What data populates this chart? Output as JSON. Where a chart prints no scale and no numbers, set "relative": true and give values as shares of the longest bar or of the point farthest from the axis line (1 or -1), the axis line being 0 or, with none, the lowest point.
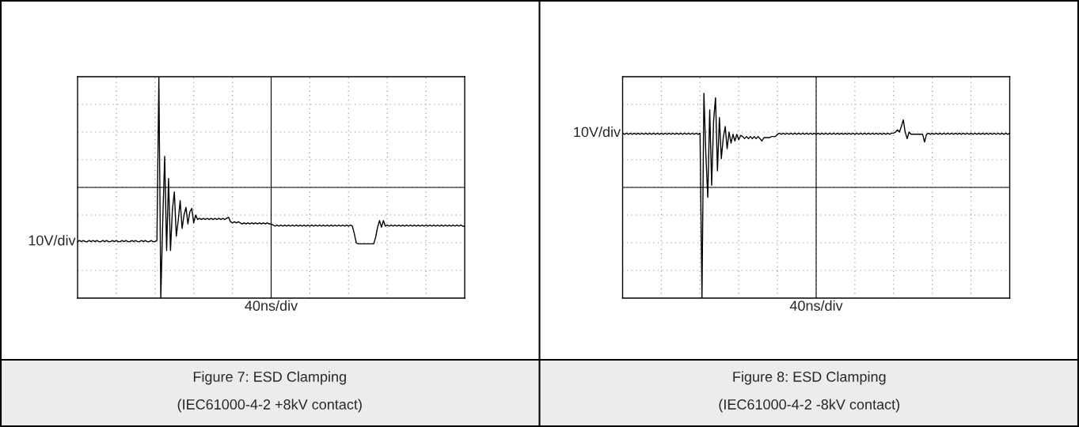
{
  "chart_data": [
    {
      "type": "line",
      "relative": true,
      "title": "Figure 7: ESD Clamping",
      "subtitle": "(IEC61000-4-2 +8kV contact)",
      "xlabel": "40ns/div",
      "ylabel": "10V/div",
      "grid": true,
      "tick_labels": false,
      "categories": [
        null,
        null,
        null,
        null,
        null,
        null,
        null,
        null,
        null,
        null,
        null,
        null,
        null,
        null,
        null,
        null,
        null,
        null,
        null,
        null,
        null,
        null,
        null,
        null,
        null,
        null,
        null,
        null,
        null,
        null,
        null,
        null,
        null,
        null,
        null,
        null,
        null,
        null,
        null,
        null,
        null,
        null,
        null,
        null,
        null,
        null,
        null,
        null,
        null,
        null,
        null,
        null,
        null,
        null,
        null,
        null,
        null,
        null,
        null,
        null,
        null,
        null,
        null,
        null,
        null,
        null,
        null,
        null,
        null,
        null,
        null,
        null,
        null,
        null,
        null,
        null,
        null,
        null,
        null,
        null,
        null,
        null,
        null,
        null,
        null,
        null,
        null,
        null,
        null,
        null,
        null,
        null,
        null,
        null,
        null,
        null,
        null,
        null,
        null,
        null,
        null,
        null,
        null,
        null,
        null,
        null,
        null,
        null,
        null,
        null,
        null,
        null,
        null,
        null,
        null,
        null,
        null,
        null,
        null,
        null,
        null,
        null,
        null,
        null,
        null,
        null,
        null,
        null,
        null,
        null,
        null,
        null,
        null,
        null,
        null,
        null,
        null,
        null,
        null,
        null,
        null,
        null,
        null,
        null,
        null,
        null,
        null,
        null,
        null,
        null,
        null,
        null,
        null,
        null,
        null,
        null,
        null,
        null,
        null,
        null,
        null,
        null,
        null,
        null,
        null,
        null,
        null,
        null,
        null,
        null,
        null,
        null,
        null,
        null,
        null,
        null,
        null,
        null,
        null,
        null,
        null,
        null,
        null,
        null,
        null,
        null,
        null,
        null,
        null,
        null,
        null,
        null,
        null,
        null,
        null,
        null,
        null,
        null,
        null,
        null,
        null
      ],
      "series": [
        {
          "color": "#000000",
          "values": [
            -0.49,
            -0.48,
            -0.49,
            -0.48,
            -0.49,
            -0.49,
            -0.48,
            -0.49,
            -0.48,
            -0.49,
            -0.48,
            -0.49,
            -0.49,
            -0.48,
            -0.49,
            -0.48,
            -0.49,
            -0.49,
            -0.48,
            -0.49,
            -0.48,
            -0.49,
            -0.49,
            -0.48,
            -0.49,
            -0.48,
            -0.49,
            -0.49,
            -0.48,
            -0.49,
            -0.48,
            -0.49,
            -0.49,
            -0.48,
            -0.49,
            -0.48,
            -0.49,
            -0.49,
            -0.48,
            -0.49,
            -0.49,
            -0.48,
            1.0,
            -1.0,
            -0.3,
            0.28,
            -0.57,
            0.08,
            -0.57,
            -0.2,
            -0.04,
            -0.44,
            -0.3,
            -0.12,
            -0.37,
            -0.25,
            -0.18,
            -0.33,
            -0.22,
            -0.19,
            -0.32,
            -0.25,
            -0.29,
            -0.28,
            -0.29,
            -0.28,
            -0.29,
            -0.28,
            -0.29,
            -0.28,
            -0.29,
            -0.28,
            -0.29,
            -0.28,
            -0.29,
            -0.28,
            -0.29,
            -0.28,
            -0.27,
            -0.31,
            -0.32,
            -0.31,
            -0.32,
            -0.31,
            -0.32,
            -0.33,
            -0.32,
            -0.33,
            -0.32,
            -0.33,
            -0.32,
            -0.33,
            -0.32,
            -0.33,
            -0.32,
            -0.33,
            -0.32,
            -0.33,
            -0.32,
            -0.33,
            -0.33,
            -0.34,
            -0.35,
            -0.34,
            -0.35,
            -0.34,
            -0.35,
            -0.34,
            -0.35,
            -0.34,
            -0.35,
            -0.34,
            -0.35,
            -0.34,
            -0.35,
            -0.34,
            -0.35,
            -0.34,
            -0.35,
            -0.34,
            -0.35,
            -0.34,
            -0.35,
            -0.34,
            -0.35,
            -0.34,
            -0.35,
            -0.34,
            -0.35,
            -0.34,
            -0.35,
            -0.34,
            -0.35,
            -0.34,
            -0.35,
            -0.34,
            -0.35,
            -0.34,
            -0.35,
            -0.34,
            -0.35,
            -0.34,
            -0.35,
            -0.42,
            -0.5,
            -0.51,
            -0.51,
            -0.51,
            -0.51,
            -0.51,
            -0.51,
            -0.51,
            -0.51,
            -0.51,
            -0.45,
            -0.36,
            -0.3,
            -0.36,
            -0.3,
            -0.35,
            -0.34,
            -0.35,
            -0.34,
            -0.35,
            -0.34,
            -0.35,
            -0.34,
            -0.35,
            -0.34,
            -0.35,
            -0.34,
            -0.35,
            -0.34,
            -0.35,
            -0.34,
            -0.35,
            -0.34,
            -0.35,
            -0.34,
            -0.35,
            -0.34,
            -0.35,
            -0.34,
            -0.35,
            -0.34,
            -0.35,
            -0.34,
            -0.35,
            -0.34,
            -0.35,
            -0.34,
            -0.35,
            -0.34,
            -0.35,
            -0.34,
            -0.35,
            -0.34,
            -0.35,
            -0.34,
            -0.35,
            -0.35
          ]
        }
      ]
    },
    {
      "type": "line",
      "relative": true,
      "title": "Figure 8: ESD Clamping",
      "subtitle": "(IEC61000-4-2 -8kV contact)",
      "xlabel": "40ns/div",
      "ylabel": "10V/div",
      "grid": true,
      "tick_labels": false,
      "categories": [
        null,
        null,
        null,
        null,
        null,
        null,
        null,
        null,
        null,
        null,
        null,
        null,
        null,
        null,
        null,
        null,
        null,
        null,
        null,
        null,
        null,
        null,
        null,
        null,
        null,
        null,
        null,
        null,
        null,
        null,
        null,
        null,
        null,
        null,
        null,
        null,
        null,
        null,
        null,
        null,
        null,
        null,
        null,
        null,
        null,
        null,
        null,
        null,
        null,
        null,
        null,
        null,
        null,
        null,
        null,
        null,
        null,
        null,
        null,
        null,
        null,
        null,
        null,
        null,
        null,
        null,
        null,
        null,
        null,
        null,
        null,
        null,
        null,
        null,
        null,
        null,
        null,
        null,
        null,
        null,
        null,
        null,
        null,
        null,
        null,
        null,
        null,
        null,
        null,
        null,
        null,
        null,
        null,
        null,
        null,
        null,
        null,
        null,
        null,
        null,
        null,
        null,
        null,
        null,
        null,
        null,
        null,
        null,
        null,
        null,
        null,
        null,
        null,
        null,
        null,
        null,
        null,
        null,
        null,
        null,
        null,
        null,
        null,
        null,
        null,
        null,
        null,
        null,
        null,
        null,
        null,
        null,
        null,
        null,
        null,
        null,
        null,
        null,
        null,
        null,
        null,
        null,
        null,
        null,
        null,
        null,
        null,
        null,
        null,
        null,
        null,
        null,
        null,
        null,
        null,
        null,
        null,
        null,
        null,
        null,
        null,
        null,
        null,
        null,
        null,
        null,
        null,
        null,
        null,
        null,
        null,
        null,
        null,
        null,
        null,
        null,
        null,
        null,
        null,
        null,
        null,
        null,
        null,
        null,
        null,
        null,
        null,
        null,
        null,
        null,
        null,
        null,
        null,
        null,
        null,
        null,
        null,
        null,
        null,
        null,
        null
      ],
      "series": [
        {
          "color": "#000000",
          "values": [
            0.49,
            0.48,
            0.49,
            0.48,
            0.49,
            0.48,
            0.49,
            0.48,
            0.49,
            0.48,
            0.49,
            0.48,
            0.49,
            0.48,
            0.49,
            0.48,
            0.49,
            0.48,
            0.49,
            0.48,
            0.49,
            0.48,
            0.49,
            0.48,
            0.49,
            0.48,
            0.49,
            0.48,
            0.49,
            0.48,
            0.49,
            0.48,
            0.49,
            0.48,
            0.49,
            0.48,
            0.49,
            0.48,
            0.49,
            0.48,
            0.49,
            -1.0,
            0.85,
            0.3,
            -0.09,
            0.7,
            0.02,
            0.6,
            0.81,
            0.15,
            0.63,
            0.26,
            0.45,
            0.55,
            0.35,
            0.5,
            0.4,
            0.48,
            0.42,
            0.48,
            0.43,
            0.47,
            0.46,
            0.44,
            0.46,
            0.44,
            0.46,
            0.44,
            0.46,
            0.44,
            0.46,
            0.44,
            0.42,
            0.45,
            0.45,
            0.45,
            0.45,
            0.46,
            0.46,
            0.46,
            0.48,
            0.49,
            0.48,
            0.49,
            0.48,
            0.49,
            0.48,
            0.49,
            0.48,
            0.49,
            0.48,
            0.49,
            0.48,
            0.49,
            0.48,
            0.49,
            0.48,
            0.49,
            0.48,
            0.49,
            0.48,
            0.49,
            0.48,
            0.49,
            0.48,
            0.49,
            0.48,
            0.49,
            0.48,
            0.49,
            0.48,
            0.49,
            0.48,
            0.49,
            0.48,
            0.49,
            0.48,
            0.49,
            0.48,
            0.49,
            0.48,
            0.49,
            0.48,
            0.49,
            0.48,
            0.49,
            0.48,
            0.49,
            0.48,
            0.49,
            0.48,
            0.49,
            0.48,
            0.49,
            0.48,
            0.49,
            0.48,
            0.49,
            0.48,
            0.49,
            0.49,
            0.5,
            0.52,
            0.5,
            0.55,
            0.61,
            0.5,
            0.44,
            0.5,
            0.48,
            0.48,
            0.48,
            0.48,
            0.48,
            0.48,
            0.48,
            0.41,
            0.48,
            0.49,
            0.48,
            0.49,
            0.48,
            0.49,
            0.48,
            0.49,
            0.48,
            0.49,
            0.48,
            0.49,
            0.48,
            0.49,
            0.48,
            0.49,
            0.48,
            0.49,
            0.48,
            0.49,
            0.48,
            0.49,
            0.48,
            0.49,
            0.48,
            0.49,
            0.48,
            0.49,
            0.48,
            0.49,
            0.48,
            0.49,
            0.48,
            0.49,
            0.48,
            0.49,
            0.48,
            0.49,
            0.48,
            0.49,
            0.48,
            0.49,
            0.48,
            0.49
          ]
        }
      ]
    }
  ]
}
